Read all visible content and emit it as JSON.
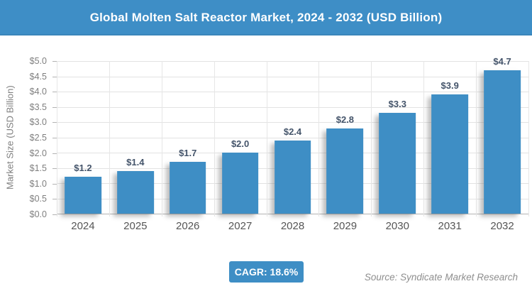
{
  "header": {
    "title": "Global Molten Salt Reactor Market, 2024 - 2032 (USD Billion)",
    "bg_color": "#3E8EC6",
    "title_color": "#FFFFFF"
  },
  "chart_data": {
    "type": "bar",
    "title": "Global Molten Salt Reactor Market, 2024 - 2032 (USD Billion)",
    "categories": [
      "2024",
      "2025",
      "2026",
      "2027",
      "2028",
      "2029",
      "2030",
      "2031",
      "2032"
    ],
    "values": [
      1.2,
      1.4,
      1.7,
      2.0,
      2.4,
      2.8,
      3.3,
      3.9,
      4.7
    ],
    "value_labels": [
      "$1.2",
      "$1.4",
      "$1.7",
      "$2.0",
      "$2.4",
      "$2.8",
      "$3.3",
      "$3.9",
      "$4.7"
    ],
    "xlabel": "",
    "ylabel": "Market Size (USD Billion)",
    "ylim": [
      0,
      5
    ],
    "y_tick_step": 0.5,
    "y_tick_labels": [
      "$5.0",
      "$4.5",
      "$4.0",
      "$3.5",
      "$3.0",
      "$2.5",
      "$2.0",
      "$1.5",
      "$1.0",
      "$0.5",
      "$0.0"
    ],
    "grid": true,
    "legend": "none",
    "bar_color": "#3E8EC5",
    "value_label_color": "#44546A",
    "axis_text_color": "#7F7F7F",
    "x_label_color": "#555555",
    "grid_color": "#E2E2E2"
  },
  "footer": {
    "cagr_label": "CAGR: 18.6%",
    "source": "Source: Syndicate Market Research"
  }
}
